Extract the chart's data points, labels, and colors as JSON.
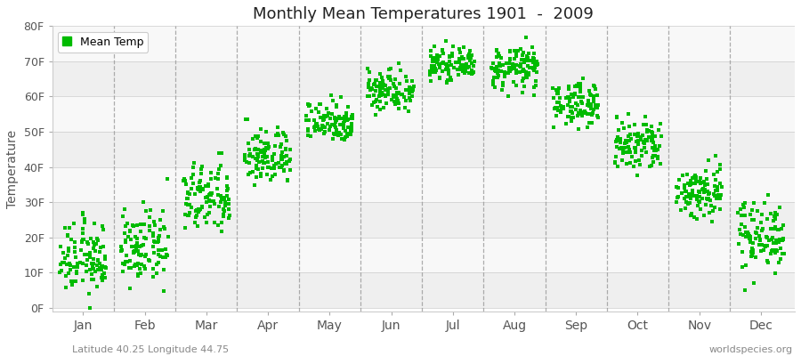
{
  "title": "Monthly Mean Temperatures 1901  -  2009",
  "ylabel": "Temperature",
  "bottom_left": "Latitude 40.25 Longitude 44.75",
  "bottom_right": "worldspecies.org",
  "legend_label": "Mean Temp",
  "dot_color": "#00BB00",
  "bg_color": "#FFFFFF",
  "band_light": "#EFEFEF",
  "band_dark": "#F8F8F8",
  "yticks": [
    "0F",
    "10F",
    "20F",
    "30F",
    "40F",
    "50F",
    "60F",
    "70F",
    "80F"
  ],
  "yvalues": [
    0,
    10,
    20,
    30,
    40,
    50,
    60,
    70,
    80
  ],
  "months": [
    "Jan",
    "Feb",
    "Mar",
    "Apr",
    "May",
    "Jun",
    "Jul",
    "Aug",
    "Sep",
    "Oct",
    "Nov",
    "Dec"
  ],
  "mean_temps_F": [
    14,
    17,
    31,
    43,
    53,
    62,
    69,
    68,
    58,
    46,
    33,
    21
  ],
  "std_temps_F": [
    5,
    5,
    5,
    4,
    3,
    3,
    2,
    3,
    3,
    4,
    4,
    5
  ],
  "n_years": 109,
  "xlim": [
    0.5,
    12.55
  ],
  "ylim": [
    -1,
    80
  ],
  "marker_size": 8
}
